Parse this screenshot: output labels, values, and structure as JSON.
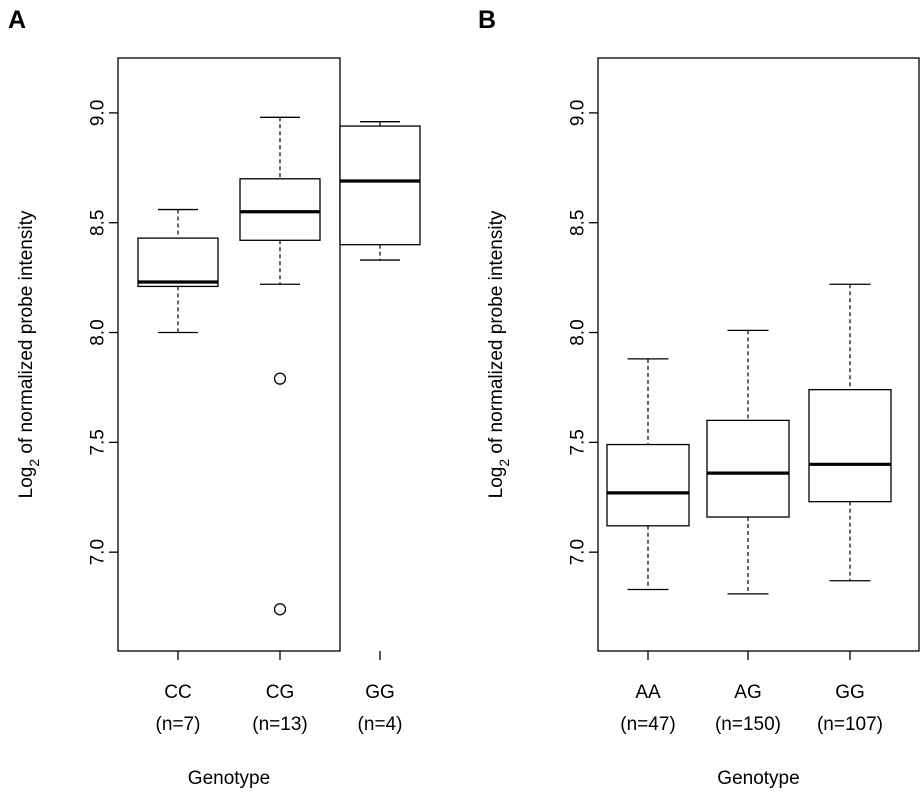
{
  "chart_data": [
    {
      "type": "boxplot",
      "panel_label": "A",
      "xlabel": "Genotype",
      "ylabel_main": "Log",
      "ylabel_sub": "2",
      "ylabel_rest": " of normalized probe intensity",
      "ylim": [
        6.55,
        9.25
      ],
      "yticks": [
        7.0,
        7.5,
        8.0,
        8.5,
        9.0
      ],
      "ytick_labels": [
        "7.0",
        "7.5",
        "8.0",
        "8.5",
        "9.0"
      ],
      "grid": false,
      "groups": [
        {
          "name": "CC",
          "n_label": "(n=7)",
          "whisker_low": 8.0,
          "q1": 8.21,
          "median": 8.23,
          "q3": 8.43,
          "whisker_high": 8.56,
          "outliers": []
        },
        {
          "name": "CG",
          "n_label": "(n=13)",
          "whisker_low": 8.22,
          "q1": 8.42,
          "median": 8.55,
          "q3": 8.7,
          "whisker_high": 8.98,
          "outliers": [
            7.79,
            6.74
          ]
        },
        {
          "name": "GG",
          "n_label": "(n=4)",
          "whisker_low": 8.33,
          "q1": 8.4,
          "median": 8.69,
          "q3": 8.94,
          "whisker_high": 8.96,
          "outliers": []
        }
      ]
    },
    {
      "type": "boxplot",
      "panel_label": "B",
      "xlabel": "Genotype",
      "ylabel_main": "Log",
      "ylabel_sub": "2",
      "ylabel_rest": " of normalized probe intensity",
      "ylim": [
        6.55,
        9.25
      ],
      "yticks": [
        7.0,
        7.5,
        8.0,
        8.5,
        9.0
      ],
      "ytick_labels": [
        "7.0",
        "7.5",
        "8.0",
        "8.5",
        "9.0"
      ],
      "grid": false,
      "groups": [
        {
          "name": "AA",
          "n_label": "(n=47)",
          "whisker_low": 6.83,
          "q1": 7.12,
          "median": 7.27,
          "q3": 7.49,
          "whisker_high": 7.88,
          "outliers": []
        },
        {
          "name": "AG",
          "n_label": "(n=150)",
          "whisker_low": 6.81,
          "q1": 7.16,
          "median": 7.36,
          "q3": 7.6,
          "whisker_high": 8.01,
          "outliers": []
        },
        {
          "name": "GG",
          "n_label": "(n=107)",
          "whisker_low": 6.87,
          "q1": 7.23,
          "median": 7.4,
          "q3": 7.74,
          "whisker_high": 8.22,
          "outliers": []
        }
      ]
    }
  ]
}
